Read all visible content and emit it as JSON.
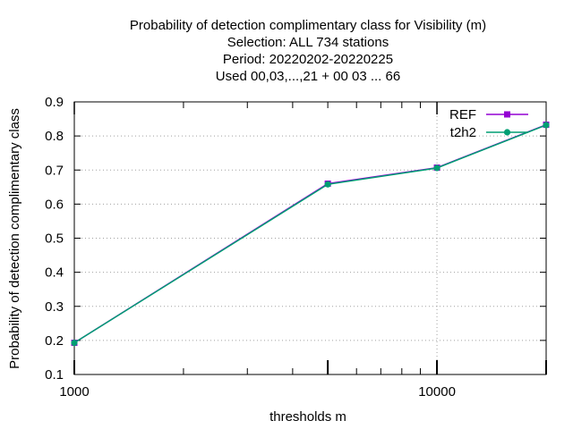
{
  "chart_data": {
    "type": "line",
    "title_lines": [
      "Probability of detection complimentary class  for Visibility (m)",
      "Selection: ALL    734 stations",
      "Period: 20220202-20220225",
      "Used  00,03,...,21  + 00 03 ... 66"
    ],
    "xlabel": "thresholds m",
    "ylabel": "Probability of detection complimentary class",
    "x_scale": "log",
    "xlim": [
      1000,
      20000
    ],
    "ylim": [
      0.1,
      0.9
    ],
    "x_ticks": [
      {
        "value": 1000,
        "label": "1000"
      },
      {
        "value": 10000,
        "label": "10000"
      }
    ],
    "y_ticks": [
      {
        "value": 0.1,
        "label": "0.1"
      },
      {
        "value": 0.2,
        "label": "0.2"
      },
      {
        "value": 0.3,
        "label": "0.3"
      },
      {
        "value": 0.4,
        "label": "0.4"
      },
      {
        "value": 0.5,
        "label": "0.5"
      },
      {
        "value": 0.6,
        "label": "0.6"
      },
      {
        "value": 0.7,
        "label": "0.7"
      },
      {
        "value": 0.8,
        "label": "0.8"
      },
      {
        "value": 0.9,
        "label": "0.9"
      }
    ],
    "grid": true,
    "legend_position": "top-right",
    "series": [
      {
        "name": "REF",
        "color": "#9400d3",
        "x": [
          1000,
          5000,
          10000,
          20000
        ],
        "y": [
          0.193,
          0.66,
          0.707,
          0.833
        ]
      },
      {
        "name": "t2h2",
        "color": "#009e73",
        "x": [
          1000,
          5000,
          10000,
          20000
        ],
        "y": [
          0.193,
          0.658,
          0.706,
          0.832
        ]
      }
    ]
  }
}
